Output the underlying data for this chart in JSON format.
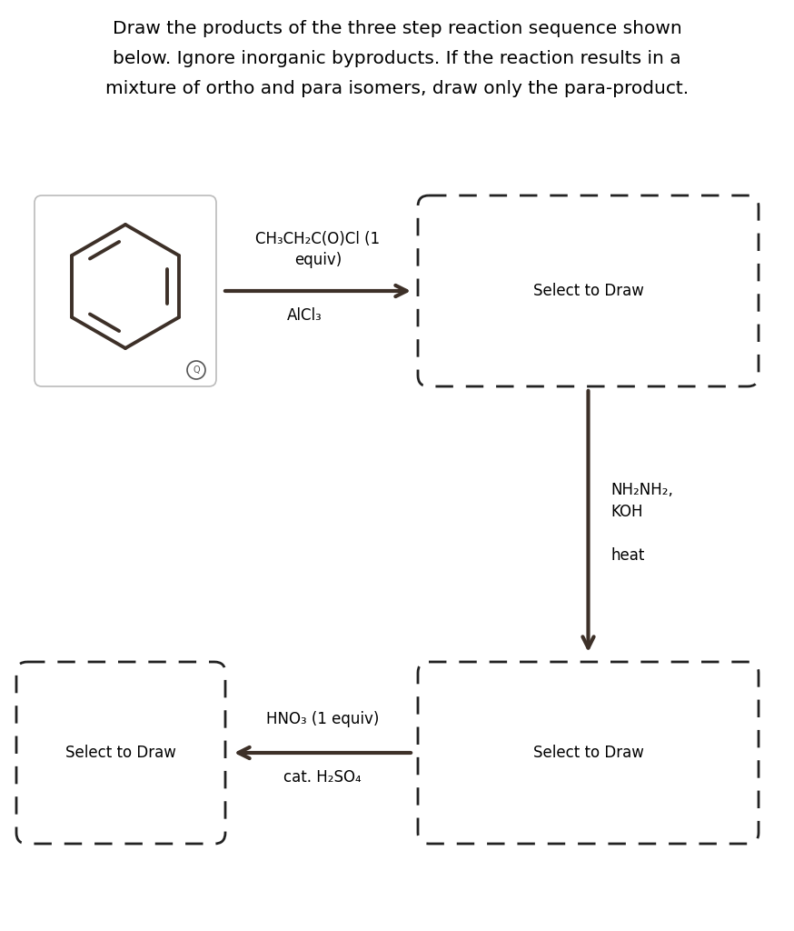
{
  "title_lines": [
    "Draw the products of the three step reaction sequence shown",
    "below. Ignore inorganic byproducts. If the reaction results in a",
    "mixture of ortho and para isomers, draw only the para-product."
  ],
  "title_fontsize": 14.5,
  "background_color": "#ffffff",
  "arrow_color": "#3d3028",
  "text_color": "#000000",
  "step1_reagent1": "CH₃CH₂C(O)Cl (1",
  "step1_reagent2": "equiv)",
  "step1_reagent3": "AlCl₃",
  "step2_reagent1": "NH₂NH₂,",
  "step2_reagent2": "KOH",
  "step2_reagent3": "heat",
  "step3_reagent1": "HNO₃ (1 equiv)",
  "step3_reagent2": "cat. H₂SO₄",
  "select_to_draw": "Select to Draw",
  "reagent_fontsize": 12,
  "select_fontsize": 12
}
